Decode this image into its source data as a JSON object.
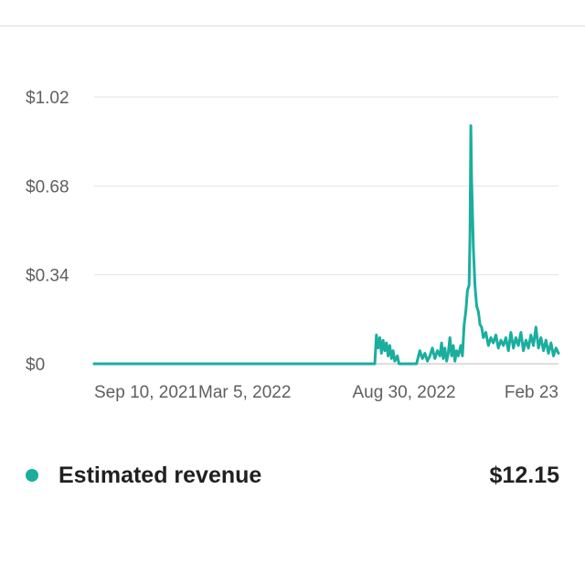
{
  "colors": {
    "series": "#1bae9e",
    "grid": "#e2e2e2",
    "baseline": "#bdbdbd"
  },
  "legend": {
    "label": "Estimated revenue",
    "value": "$12.15",
    "dot_icon": "series-dot-icon"
  },
  "chart_data": {
    "type": "line",
    "title": "",
    "xlabel": "",
    "ylabel": "",
    "y_unit": "$",
    "ylim": [
      0,
      1.02
    ],
    "y_ticks": [
      {
        "value": 0,
        "label": "$0"
      },
      {
        "value": 0.34,
        "label": "$0.34"
      },
      {
        "value": 0.68,
        "label": "$0.68"
      },
      {
        "value": 1.02,
        "label": "$1.02"
      }
    ],
    "x_range": [
      "2021-08-20",
      "2023-02-27"
    ],
    "x_ticks": [
      {
        "date": "2021-09-10",
        "label": "Sep 10, 2021"
      },
      {
        "date": "2022-03-05",
        "label": "Mar 5, 2022"
      },
      {
        "date": "2022-08-30",
        "label": "Aug 30, 2022"
      },
      {
        "date": "2023-02-23",
        "label": "Feb 23"
      }
    ],
    "grid": true,
    "legend_position": "bottom",
    "series": [
      {
        "name": "Estimated revenue",
        "points": [
          [
            "2021-08-20",
            0
          ],
          [
            "2022-07-20",
            0
          ],
          [
            "2022-07-22",
            0
          ],
          [
            "2022-07-24",
            0.11
          ],
          [
            "2022-07-26",
            0.06
          ],
          [
            "2022-07-28",
            0.1
          ],
          [
            "2022-07-30",
            0.04
          ],
          [
            "2022-08-01",
            0.09
          ],
          [
            "2022-08-03",
            0.05
          ],
          [
            "2022-08-05",
            0.08
          ],
          [
            "2022-08-07",
            0.03
          ],
          [
            "2022-08-09",
            0.07
          ],
          [
            "2022-08-11",
            0.02
          ],
          [
            "2022-08-13",
            0.05
          ],
          [
            "2022-08-15",
            0.01
          ],
          [
            "2022-08-18",
            0.03
          ],
          [
            "2022-08-20",
            0
          ],
          [
            "2022-09-10",
            0
          ],
          [
            "2022-09-14",
            0.05
          ],
          [
            "2022-09-17",
            0.02
          ],
          [
            "2022-09-20",
            0.04
          ],
          [
            "2022-09-23",
            0.01
          ],
          [
            "2022-09-26",
            0.03
          ],
          [
            "2022-09-29",
            0.06
          ],
          [
            "2022-10-02",
            0.02
          ],
          [
            "2022-10-05",
            0.05
          ],
          [
            "2022-10-08",
            0.03
          ],
          [
            "2022-10-10",
            0.08
          ],
          [
            "2022-10-12",
            0.02
          ],
          [
            "2022-10-14",
            0.06
          ],
          [
            "2022-10-16",
            0.01
          ],
          [
            "2022-10-18",
            0.04
          ],
          [
            "2022-10-20",
            0.1
          ],
          [
            "2022-10-22",
            0.03
          ],
          [
            "2022-10-24",
            0.07
          ],
          [
            "2022-10-26",
            0.01
          ],
          [
            "2022-10-28",
            0.05
          ],
          [
            "2022-10-30",
            0.03
          ],
          [
            "2022-11-02",
            0.07
          ],
          [
            "2022-11-04",
            0.03
          ],
          [
            "2022-11-06",
            0.15
          ],
          [
            "2022-11-08",
            0.2
          ],
          [
            "2022-11-10",
            0.28
          ],
          [
            "2022-11-12",
            0.3
          ],
          [
            "2022-11-13",
            0.5
          ],
          [
            "2022-11-14",
            0.91
          ],
          [
            "2022-11-15",
            0.7
          ],
          [
            "2022-11-17",
            0.45
          ],
          [
            "2022-11-19",
            0.3
          ],
          [
            "2022-11-21",
            0.22
          ],
          [
            "2022-11-23",
            0.2
          ],
          [
            "2022-11-25",
            0.15
          ],
          [
            "2022-11-27",
            0.14
          ],
          [
            "2022-11-29",
            0.1
          ],
          [
            "2022-12-02",
            0.12
          ],
          [
            "2022-12-05",
            0.07
          ],
          [
            "2022-12-08",
            0.1
          ],
          [
            "2022-12-11",
            0.08
          ],
          [
            "2022-12-14",
            0.11
          ],
          [
            "2022-12-17",
            0.06
          ],
          [
            "2022-12-20",
            0.09
          ],
          [
            "2022-12-23",
            0.07
          ],
          [
            "2022-12-26",
            0.1
          ],
          [
            "2022-12-29",
            0.05
          ],
          [
            "2023-01-01",
            0.12
          ],
          [
            "2023-01-04",
            0.06
          ],
          [
            "2023-01-07",
            0.1
          ],
          [
            "2023-01-10",
            0.07
          ],
          [
            "2023-01-13",
            0.12
          ],
          [
            "2023-01-16",
            0.05
          ],
          [
            "2023-01-19",
            0.09
          ],
          [
            "2023-01-22",
            0.06
          ],
          [
            "2023-01-25",
            0.11
          ],
          [
            "2023-01-28",
            0.07
          ],
          [
            "2023-01-31",
            0.14
          ],
          [
            "2023-02-03",
            0.06
          ],
          [
            "2023-02-06",
            0.1
          ],
          [
            "2023-02-09",
            0.05
          ],
          [
            "2023-02-12",
            0.09
          ],
          [
            "2023-02-15",
            0.04
          ],
          [
            "2023-02-18",
            0.08
          ],
          [
            "2023-02-21",
            0.03
          ],
          [
            "2023-02-24",
            0.06
          ],
          [
            "2023-02-27",
            0.04
          ]
        ]
      }
    ]
  }
}
